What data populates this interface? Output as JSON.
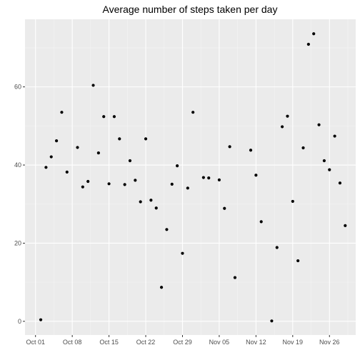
{
  "chart_data": {
    "type": "scatter",
    "title": "Average number of steps taken per day",
    "xlabel": "",
    "ylabel": "",
    "x": [
      "2012-10-02",
      "2012-10-03",
      "2012-10-04",
      "2012-10-05",
      "2012-10-06",
      "2012-10-07",
      "2012-10-09",
      "2012-10-10",
      "2012-10-11",
      "2012-10-12",
      "2012-10-13",
      "2012-10-14",
      "2012-10-15",
      "2012-10-16",
      "2012-10-17",
      "2012-10-18",
      "2012-10-19",
      "2012-10-20",
      "2012-10-21",
      "2012-10-22",
      "2012-10-23",
      "2012-10-24",
      "2012-10-25",
      "2012-10-26",
      "2012-10-27",
      "2012-10-28",
      "2012-10-29",
      "2012-10-30",
      "2012-10-31",
      "2012-11-02",
      "2012-11-03",
      "2012-11-05",
      "2012-11-06",
      "2012-11-07",
      "2012-11-08",
      "2012-11-11",
      "2012-11-12",
      "2012-11-13",
      "2012-11-15",
      "2012-11-16",
      "2012-11-17",
      "2012-11-18",
      "2012-11-19",
      "2012-11-20",
      "2012-11-21",
      "2012-11-22",
      "2012-11-23",
      "2012-11-24",
      "2012-11-25",
      "2012-11-26",
      "2012-11-27",
      "2012-11-28",
      "2012-11-29"
    ],
    "y": [
      0.4,
      39.4,
      42.1,
      46.2,
      53.5,
      38.2,
      44.5,
      34.4,
      35.8,
      60.4,
      43.1,
      52.4,
      35.2,
      52.4,
      46.7,
      35.0,
      41.1,
      36.1,
      30.6,
      46.7,
      31.0,
      29.0,
      8.7,
      23.5,
      35.1,
      39.8,
      17.4,
      34.1,
      53.5,
      36.8,
      36.7,
      36.2,
      28.9,
      44.7,
      11.2,
      43.8,
      37.4,
      25.5,
      0.1,
      18.9,
      49.8,
      52.5,
      30.7,
      15.5,
      44.4,
      70.9,
      73.6,
      50.3,
      41.1,
      38.8,
      47.4,
      35.4,
      24.5
    ],
    "x_ticks": [
      "Oct 01",
      "Oct 08",
      "Oct 15",
      "Oct 22",
      "Oct 29",
      "Nov 05",
      "Nov 12",
      "Nov 19",
      "Nov 26"
    ],
    "x_tick_dates": [
      "2012-10-01",
      "2012-10-08",
      "2012-10-15",
      "2012-10-22",
      "2012-10-29",
      "2012-11-05",
      "2012-11-12",
      "2012-11-19",
      "2012-11-26"
    ],
    "xlim": [
      "2012-09-29",
      "2012-12-01"
    ],
    "y_ticks": [
      0,
      20,
      40,
      60
    ],
    "ylim": [
      -3.5,
      77.3
    ],
    "grid": true,
    "legend": "none",
    "colors": {
      "panel": "#ebebeb",
      "grid_major": "#ffffff",
      "grid_minor": "#f5f5f5",
      "point": "#000000",
      "tick_text": "#4d4d4d",
      "tick_mark": "#333333"
    }
  }
}
